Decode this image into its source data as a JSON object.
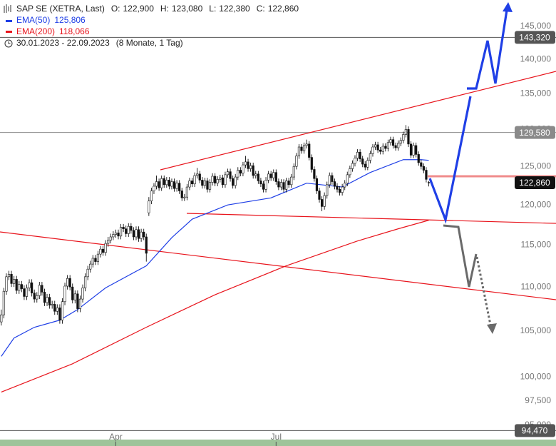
{
  "chart_data": {
    "type": "candlestick",
    "header": {
      "instrument": "SAP SE (XETRA, Last)",
      "fields": [
        {
          "label": "O:",
          "value": "122,900"
        },
        {
          "label": "H:",
          "value": "123,080"
        },
        {
          "label": "L:",
          "value": "122,380"
        },
        {
          "label": "C:",
          "value": "122,860"
        }
      ],
      "period": "30.01.2023 - 22.09.2023",
      "duration": "(8 Monate, 1 Tag)"
    },
    "log_scale": true,
    "ylim": [
      93640,
      149120
    ],
    "yticks": [
      {
        "value": 145000,
        "label": "145,000"
      },
      {
        "value": 140000,
        "label": "140,000"
      },
      {
        "value": 135000,
        "label": "135,000"
      },
      {
        "value": 130000,
        "label": "130,000"
      },
      {
        "value": 125000,
        "label": "125,000"
      },
      {
        "value": 120000,
        "label": "120,000"
      },
      {
        "value": 115000,
        "label": "115,000"
      },
      {
        "value": 110000,
        "label": "110,000"
      },
      {
        "value": 105000,
        "label": "105,000"
      },
      {
        "value": 100000,
        "label": "100,000"
      },
      {
        "value": 97500,
        "label": "97,500"
      },
      {
        "value": 95000,
        "label": "95,000"
      }
    ],
    "xlim": [
      -0.5,
      218
    ],
    "xticks": [
      {
        "value": 45,
        "label": "Apr"
      },
      {
        "value": 108,
        "label": "Jul"
      }
    ],
    "grid": false,
    "up_color": "#ffffff",
    "down_color": "#111111",
    "candles": [
      [
        106000,
        107400,
        105600,
        106800
      ],
      [
        106800,
        109900,
        106400,
        109500
      ],
      [
        109500,
        111600,
        109100,
        111200
      ],
      [
        111200,
        111900,
        110800,
        111500
      ],
      [
        111500,
        111900,
        110000,
        110400
      ],
      [
        110400,
        111300,
        110000,
        110900
      ],
      [
        110900,
        111300,
        109200,
        109600
      ],
      [
        109600,
        110700,
        109200,
        110300
      ],
      [
        110300,
        110700,
        109400,
        109800
      ],
      [
        109800,
        110200,
        108500,
        108900
      ],
      [
        108900,
        110300,
        108500,
        109900
      ],
      [
        109900,
        110900,
        109500,
        110500
      ],
      [
        110500,
        110900,
        108900,
        109300
      ],
      [
        109300,
        109700,
        108200,
        108600
      ],
      [
        108600,
        109400,
        108200,
        109000
      ],
      [
        109000,
        110600,
        108600,
        110200
      ],
      [
        110200,
        110600,
        109000,
        109400
      ],
      [
        109400,
        109800,
        107800,
        108200
      ],
      [
        108200,
        109200,
        107800,
        108800
      ],
      [
        108800,
        109200,
        107500,
        107900
      ],
      [
        107900,
        108400,
        107500,
        108000
      ],
      [
        108000,
        108400,
        106800,
        107200
      ],
      [
        107200,
        108000,
        106800,
        107600
      ],
      [
        107600,
        108000,
        105800,
        106200
      ],
      [
        106200,
        108700,
        105800,
        108300
      ],
      [
        108300,
        110500,
        107900,
        110100
      ],
      [
        110100,
        111400,
        109700,
        111000
      ],
      [
        111000,
        111400,
        109600,
        110000
      ],
      [
        110000,
        110400,
        108100,
        108500
      ],
      [
        108500,
        109600,
        108100,
        109200
      ],
      [
        109200,
        109600,
        107100,
        107500
      ],
      [
        107500,
        109000,
        107100,
        108600
      ],
      [
        108600,
        110300,
        108200,
        109900
      ],
      [
        109900,
        111600,
        109500,
        111200
      ],
      [
        111200,
        112500,
        110800,
        112100
      ],
      [
        112100,
        113100,
        111700,
        112700
      ],
      [
        112700,
        113800,
        112300,
        113400
      ],
      [
        113400,
        113800,
        112600,
        113000
      ],
      [
        113000,
        114300,
        112600,
        113900
      ],
      [
        113900,
        114900,
        113500,
        114500
      ],
      [
        114500,
        114900,
        113700,
        114100
      ],
      [
        114100,
        115600,
        113700,
        115200
      ],
      [
        115200,
        116000,
        114800,
        115600
      ],
      [
        115600,
        116400,
        115200,
        116000
      ],
      [
        116000,
        116700,
        115600,
        116300
      ],
      [
        116300,
        116900,
        115900,
        116500
      ],
      [
        116500,
        116900,
        115700,
        116100
      ],
      [
        116100,
        117600,
        115700,
        117200
      ],
      [
        117200,
        117600,
        116600,
        117000
      ],
      [
        117000,
        117400,
        116000,
        116400
      ],
      [
        116400,
        117700,
        116000,
        117300
      ],
      [
        117300,
        117700,
        116400,
        116800
      ],
      [
        116800,
        117200,
        115600,
        116000
      ],
      [
        116000,
        117300,
        115600,
        116900
      ],
      [
        116900,
        117300,
        115400,
        115800
      ],
      [
        115800,
        117000,
        115400,
        116600
      ],
      [
        116600,
        117000,
        115600,
        116000
      ],
      [
        116000,
        116400,
        113000,
        114000
      ],
      [
        119000,
        121000,
        118600,
        120500
      ],
      [
        120500,
        122200,
        120100,
        121800
      ],
      [
        121800,
        122800,
        121400,
        122400
      ],
      [
        122400,
        123800,
        122000,
        123000
      ],
      [
        123000,
        123400,
        121800,
        122200
      ],
      [
        122200,
        123800,
        121800,
        123400
      ],
      [
        123400,
        123800,
        122200,
        122600
      ],
      [
        122600,
        123600,
        122200,
        123200
      ],
      [
        123200,
        123600,
        122000,
        122400
      ],
      [
        122400,
        123400,
        122000,
        123000
      ],
      [
        123000,
        123400,
        121700,
        122100
      ],
      [
        122100,
        123200,
        121700,
        122800
      ],
      [
        122800,
        123200,
        121400,
        121800
      ],
      [
        121800,
        122200,
        120500,
        120900
      ],
      [
        120900,
        121400,
        120500,
        121000
      ],
      [
        121000,
        122700,
        120600,
        122300
      ],
      [
        122300,
        123500,
        121900,
        123100
      ],
      [
        123100,
        123500,
        122300,
        122700
      ],
      [
        122700,
        124200,
        122300,
        123800
      ],
      [
        123800,
        124800,
        123400,
        124000
      ],
      [
        124000,
        124400,
        122800,
        123200
      ],
      [
        123200,
        123600,
        122100,
        122500
      ],
      [
        122500,
        123500,
        122100,
        123100
      ],
      [
        123100,
        123500,
        121600,
        122000
      ],
      [
        122000,
        123300,
        121600,
        122900
      ],
      [
        122900,
        124100,
        122500,
        123700
      ],
      [
        123700,
        124100,
        122400,
        122800
      ],
      [
        122800,
        123700,
        122400,
        123300
      ],
      [
        123300,
        123900,
        122900,
        123500
      ],
      [
        123500,
        123900,
        122200,
        122600
      ],
      [
        122600,
        124300,
        122200,
        123900
      ],
      [
        123900,
        124700,
        123500,
        124300
      ],
      [
        124300,
        124700,
        123000,
        123400
      ],
      [
        123400,
        123800,
        122100,
        122500
      ],
      [
        122500,
        124000,
        122100,
        123600
      ],
      [
        123600,
        124900,
        123200,
        124500
      ],
      [
        124500,
        124900,
        123700,
        124100
      ],
      [
        124100,
        125600,
        123700,
        125200
      ],
      [
        125200,
        126400,
        124800,
        125600
      ],
      [
        125600,
        126000,
        124300,
        124700
      ],
      [
        124700,
        125500,
        124300,
        125100
      ],
      [
        125100,
        125500,
        123400,
        123800
      ],
      [
        123800,
        124400,
        123400,
        124000
      ],
      [
        124000,
        124400,
        122700,
        123100
      ],
      [
        123100,
        123500,
        122300,
        122700
      ],
      [
        122700,
        123100,
        121600,
        122000
      ],
      [
        122000,
        123600,
        121600,
        123200
      ],
      [
        123200,
        124400,
        122800,
        124000
      ],
      [
        124000,
        124400,
        123100,
        123500
      ],
      [
        123500,
        124600,
        123100,
        124200
      ],
      [
        124200,
        124600,
        122600,
        123000
      ],
      [
        123000,
        123400,
        121900,
        122300
      ],
      [
        122300,
        123300,
        121900,
        122900
      ],
      [
        122900,
        123300,
        121600,
        122000
      ],
      [
        122000,
        123500,
        121600,
        123100
      ],
      [
        123100,
        123500,
        122200,
        122600
      ],
      [
        122600,
        124000,
        122200,
        123600
      ],
      [
        123600,
        125400,
        123200,
        125000
      ],
      [
        125000,
        126800,
        124600,
        126400
      ],
      [
        126400,
        128000,
        126000,
        127600
      ],
      [
        127600,
        128000,
        126700,
        127100
      ],
      [
        127100,
        128200,
        126700,
        127800
      ],
      [
        127800,
        128600,
        127400,
        128000
      ],
      [
        128000,
        128400,
        125800,
        126200
      ],
      [
        126200,
        126600,
        124200,
        124600
      ],
      [
        124600,
        125000,
        123000,
        123400
      ],
      [
        123400,
        123800,
        121400,
        121800
      ],
      [
        121800,
        122200,
        120300,
        120700
      ],
      [
        120700,
        121100,
        119200,
        119800
      ],
      [
        119800,
        121600,
        119400,
        121200
      ],
      [
        121200,
        123000,
        120800,
        122600
      ],
      [
        122600,
        124200,
        122200,
        123800
      ],
      [
        123800,
        124200,
        122600,
        123000
      ],
      [
        123000,
        123400,
        122000,
        122400
      ],
      [
        122400,
        122800,
        121600,
        122000
      ],
      [
        122000,
        122400,
        121200,
        121600
      ],
      [
        121600,
        122700,
        121200,
        122300
      ],
      [
        122300,
        123200,
        121900,
        122800
      ],
      [
        122800,
        124300,
        122400,
        123900
      ],
      [
        123900,
        125100,
        123500,
        124700
      ],
      [
        124700,
        125800,
        124300,
        125400
      ],
      [
        125400,
        126500,
        125000,
        126100
      ],
      [
        126100,
        127300,
        125700,
        126900
      ],
      [
        126900,
        127300,
        125600,
        126000
      ],
      [
        126000,
        126400,
        124900,
        125300
      ],
      [
        125300,
        125700,
        124500,
        124900
      ],
      [
        124900,
        126200,
        124500,
        125800
      ],
      [
        125800,
        127100,
        125400,
        126700
      ],
      [
        126700,
        128000,
        126300,
        127600
      ],
      [
        127600,
        128300,
        127200,
        127900
      ],
      [
        127900,
        128300,
        126800,
        127200
      ],
      [
        127200,
        127600,
        126600,
        127000
      ],
      [
        127000,
        128100,
        126600,
        127700
      ],
      [
        127700,
        128100,
        127000,
        127400
      ],
      [
        127400,
        128600,
        127000,
        128200
      ],
      [
        128200,
        129000,
        127800,
        128600
      ],
      [
        128600,
        129000,
        127400,
        127800
      ],
      [
        127800,
        128200,
        127100,
        127500
      ],
      [
        127500,
        128500,
        127100,
        128100
      ],
      [
        128100,
        128900,
        127700,
        128500
      ],
      [
        128500,
        129700,
        128100,
        129300
      ],
      [
        129300,
        130600,
        128900,
        130000
      ],
      [
        130000,
        130400,
        127600,
        128000
      ],
      [
        128000,
        128400,
        126100,
        126500
      ],
      [
        126500,
        128200,
        126100,
        127800
      ],
      [
        127800,
        128200,
        126200,
        126600
      ],
      [
        126600,
        127000,
        125100,
        125500
      ],
      [
        125500,
        125900,
        124600,
        125000
      ],
      [
        125000,
        125400,
        124100,
        124500
      ],
      [
        124500,
        124900,
        122900,
        123300
      ],
      [
        122900,
        123080,
        122380,
        122860
      ]
    ],
    "series": [
      {
        "name": "EMA(50)",
        "color": "#1f3fe6",
        "last_label": "125,806",
        "x": [
          0,
          5,
          13,
          23,
          30,
          41,
          57,
          67,
          75,
          89,
          106,
          120,
          134,
          145,
          158,
          165,
          168
        ],
        "values": [
          102200,
          104200,
          105400,
          106200,
          107400,
          109900,
          112500,
          115900,
          118200,
          120000,
          120900,
          122800,
          122300,
          124200,
          125900,
          125900,
          125806
        ]
      },
      {
        "name": "EMA(200)",
        "color": "#e8141c",
        "last_label": "118,066",
        "x": [
          0,
          28,
          57,
          84,
          112,
          140,
          156,
          168
        ],
        "values": [
          98400,
          101400,
          105400,
          109100,
          112500,
          115500,
          117000,
          118066
        ]
      }
    ],
    "price_lines": [
      {
        "value": 143320,
        "label": "143,320",
        "color": "#555555",
        "line": true
      },
      {
        "value": 129580,
        "label": "129,580",
        "color": "#8a8a8a",
        "line": true
      },
      {
        "value": 122860,
        "label": "122,860",
        "color": "#111111",
        "line": false
      },
      {
        "value": 94470,
        "label": "94,470",
        "color": "#555555",
        "line": true
      }
    ]
  }
}
